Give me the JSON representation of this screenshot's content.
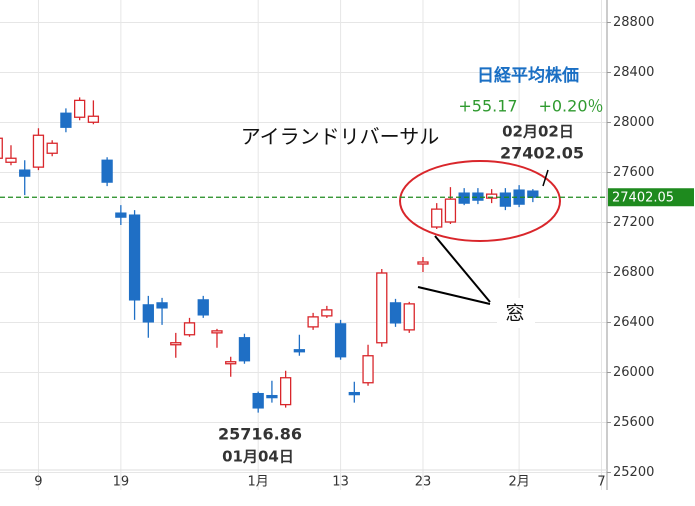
{
  "chart_data": {
    "type": "candlestick",
    "title": "日経平均株価",
    "change": "+55.17",
    "change_percent": "+0.20％",
    "open": [
      27714,
      27682,
      27619,
      27643,
      27754,
      28074,
      28042,
      28002,
      27698,
      27275,
      27259,
      26541,
      26557,
      26222,
      26302,
      26581,
      26317,
      26070,
      26278,
      25831,
      25815,
      25743,
      26182,
      26365,
      26453,
      26389,
      25839,
      25918,
      26238,
      26557,
      26341,
      26868,
      27164,
      27204,
      27435,
      27435,
      27395,
      27435,
      27459,
      27451
    ],
    "high": [
      27940,
      27818,
      27698,
      27954,
      27858,
      28113,
      28201,
      28177,
      27722,
      27339,
      27299,
      26613,
      26597,
      26317,
      26437,
      26613,
      26349,
      26126,
      26310,
      25847,
      25934,
      26014,
      26302,
      26477,
      26533,
      26421,
      25926,
      26222,
      26828,
      26589,
      26565,
      26924,
      27355,
      27483,
      27475,
      27475,
      27467,
      27475,
      27499,
      27467
    ],
    "low": [
      27660,
      27658,
      27419,
      27619,
      27730,
      27922,
      28018,
      27986,
      27491,
      27180,
      26421,
      26278,
      26381,
      26118,
      26286,
      26437,
      26198,
      25966,
      26070,
      25679,
      25759,
      25719,
      26134,
      26341,
      26437,
      26102,
      25759,
      25894,
      26206,
      26365,
      26317,
      26804,
      27148,
      27188,
      27339,
      27347,
      27355,
      27299,
      27323,
      27363
    ],
    "close": [
      27874,
      27714,
      27571,
      27898,
      27834,
      27962,
      28177,
      28050,
      27523,
      27243,
      26581,
      26405,
      26517,
      26238,
      26397,
      26461,
      26333,
      26086,
      26094,
      25716.86,
      25799,
      25958,
      26166,
      26445,
      26501,
      26126,
      25823,
      26134,
      26796,
      26397,
      26549,
      26884,
      27307,
      27387,
      27355,
      27379,
      27427,
      27331,
      27347,
      27402.05
    ],
    "up_color": "#d9262b",
    "down_color": "#1f6fc5",
    "last_price_color": "#1e8a1e",
    "xlim": [
      0.2,
      44.4
    ],
    "xticks": [
      {
        "value": 3,
        "label": "9"
      },
      {
        "value": 9,
        "label": "19"
      },
      {
        "value": 19,
        "label": "1月"
      },
      {
        "value": 25,
        "label": "13"
      },
      {
        "value": 31,
        "label": "23"
      },
      {
        "value": 38,
        "label": "2月"
      },
      {
        "value": 44,
        "label": "7"
      }
    ],
    "ylim": [
      25060,
      28980
    ],
    "yticks": [
      25200,
      25600,
      26000,
      26400,
      26800,
      27200,
      27600,
      28000,
      28400,
      28800
    ],
    "grid": true,
    "annotations": {
      "pattern": "アイランドリバーサル",
      "gap": "窓",
      "high_date": "02月02日",
      "low_date": "01月04日"
    }
  }
}
